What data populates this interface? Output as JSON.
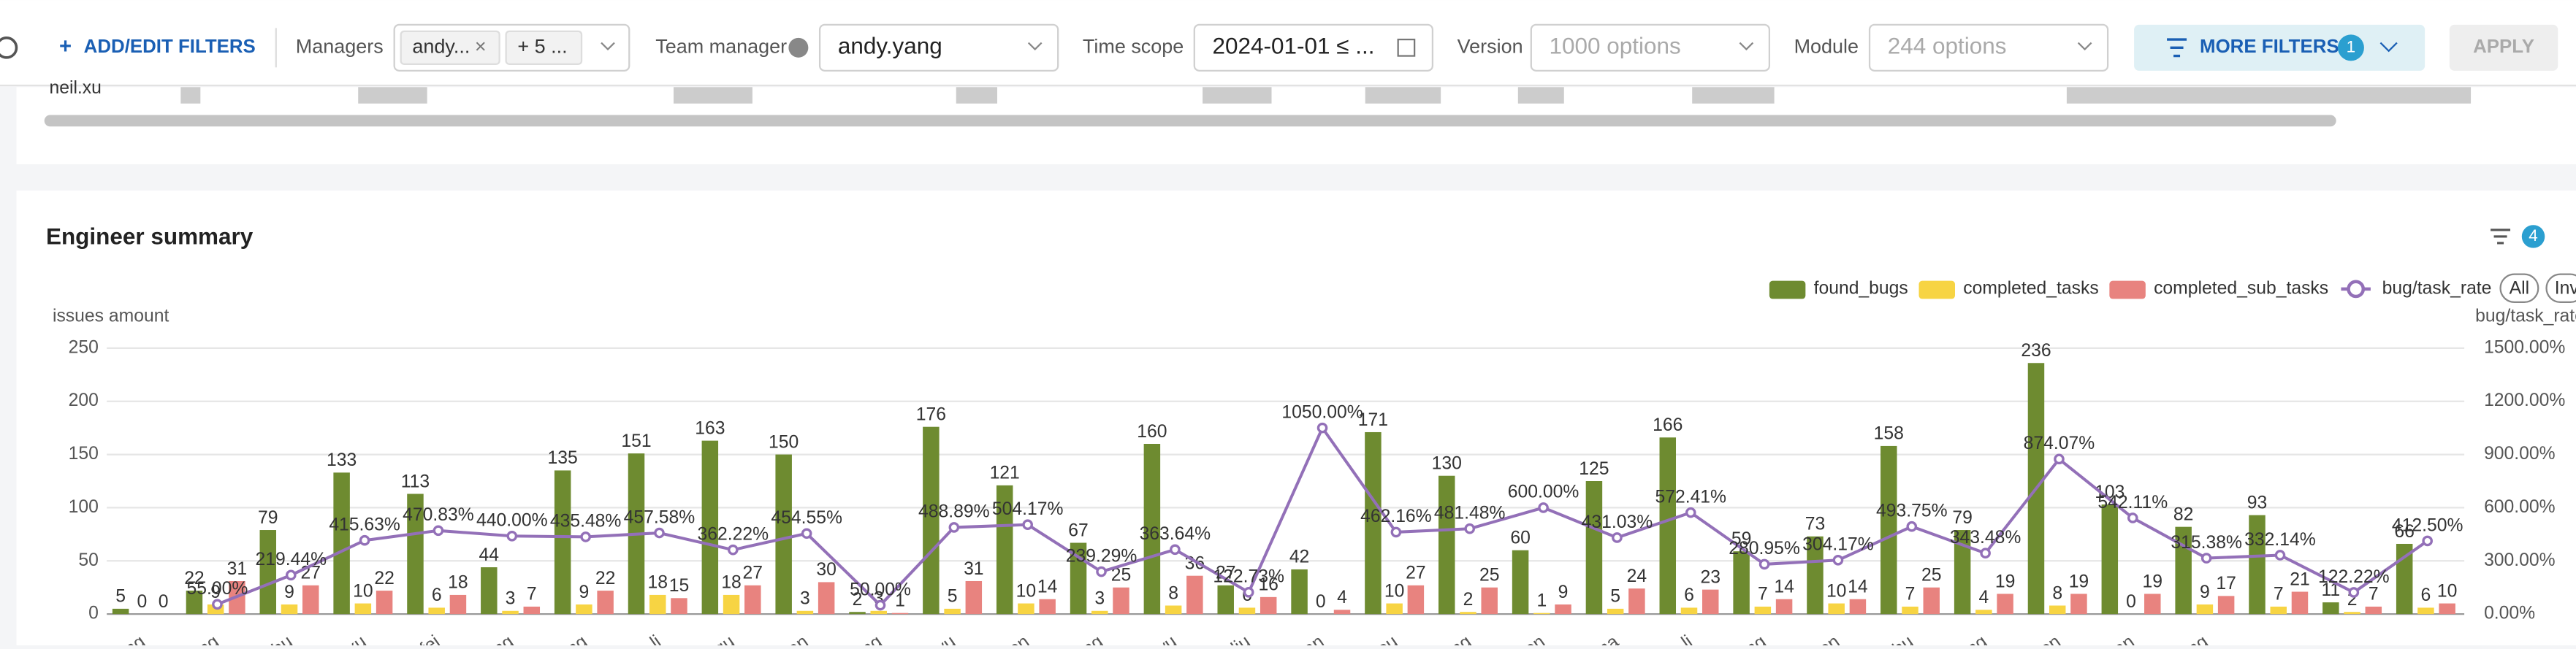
{
  "filters": {
    "add_button": "ADD/EDIT FILTERS",
    "managers_label": "Managers",
    "managers_chip": "andy...",
    "managers_more": "+ 5 ...",
    "team_manager_label": "Team manager",
    "team_manager_value": "andy.yang",
    "time_scope_label": "Time scope",
    "time_scope_value": "2024-01-01 ≤ ...",
    "version_label": "Version",
    "version_placeholder": "1000 options",
    "module_label": "Module",
    "module_placeholder": "244 options",
    "more_filters": "MORE FILTERS",
    "more_filters_count": "1",
    "apply": "APPLY"
  },
  "table": {
    "row_label": "neil.xu"
  },
  "chart_data": {
    "type": "bar",
    "title": "Engineer summary",
    "filter_count": "4",
    "y_label": "issues amount",
    "y2_label": "bug/task_rate",
    "legend_buttons": [
      "All",
      "Inv"
    ],
    "categories": [
      "ang",
      "ang",
      "d.hu",
      "s.xu",
      "s.fei",
      "ang",
      "eng",
      "o.li",
      "g.gu",
      "han",
      "jing",
      "a.yu",
      "hen",
      "ang",
      "wu",
      "liu",
      "pan",
      "hou",
      "ang",
      "hen",
      "ma",
      "in.li",
      "ang",
      "hen",
      "chu",
      "ang",
      "hen",
      "van",
      "ang",
      null,
      null,
      null
    ],
    "series": [
      {
        "name": "found_bugs",
        "type": "bar",
        "color": "#6e8b30",
        "values": [
          5,
          22,
          79,
          133,
          113,
          44,
          135,
          151,
          163,
          150,
          2,
          176,
          121,
          67,
          160,
          27,
          42,
          171,
          130,
          60,
          125,
          166,
          59,
          73,
          158,
          79,
          236,
          103,
          82,
          93,
          11,
          66
        ]
      },
      {
        "name": "completed_tasks",
        "type": "bar",
        "color": "#f7d443",
        "values": [
          0,
          9,
          9,
          10,
          6,
          3,
          9,
          18,
          18,
          3,
          3,
          5,
          10,
          3,
          8,
          6,
          0,
          10,
          2,
          1,
          5,
          6,
          7,
          10,
          7,
          4,
          8,
          0,
          9,
          7,
          2,
          6
        ]
      },
      {
        "name": "completed_sub_tasks",
        "type": "bar",
        "color": "#e8837f",
        "values": [
          0,
          31,
          27,
          22,
          18,
          7,
          22,
          15,
          27,
          30,
          1,
          31,
          14,
          25,
          36,
          16,
          4,
          27,
          25,
          9,
          24,
          23,
          14,
          14,
          25,
          19,
          19,
          19,
          17,
          21,
          7,
          10
        ]
      },
      {
        "name": "bug/task_rate",
        "type": "line",
        "axis": "y2",
        "color": "#9370b8",
        "values": [
          null,
          55,
          219.44,
          415.63,
          470.83,
          440,
          435.48,
          457.58,
          362.22,
          454.55,
          50,
          488.89,
          504.17,
          239.29,
          363.64,
          122.73,
          1050,
          462.16,
          481.48,
          600,
          431.03,
          572.41,
          280.95,
          304.17,
          493.75,
          343.48,
          874.07,
          542.11,
          315.38,
          332.14,
          122.22,
          412.5
        ],
        "value_labels": [
          null,
          "55.00%",
          "219.44%",
          "415.63%",
          "470.83%",
          "440.00%",
          "435.48%",
          "457.58%",
          "362.22%",
          "454.55%",
          "50.00%",
          "488.89%",
          "504.17%",
          "239.29%",
          "363.64%",
          "122.73%",
          "1050.00%",
          "462.16%",
          "481.48%",
          "600.00%",
          "431.03%",
          "572.41%",
          "280.95%",
          "304.17%",
          "493.75%",
          "343.48%",
          "874.07%",
          "542.11%",
          "315.38%",
          "332.14%",
          "122.22%",
          "412.50%"
        ]
      }
    ],
    "ylim": [
      0,
      250
    ],
    "yticks": [
      0,
      50,
      100,
      150,
      200,
      250
    ],
    "y2lim": [
      0,
      1500
    ],
    "y2ticks": [
      {
        "value": 0,
        "label": "0.00%"
      },
      {
        "value": 300,
        "label": "300.00%"
      },
      {
        "value": 600,
        "label": "600.00%"
      },
      {
        "value": 900,
        "label": "900.00%"
      },
      {
        "value": 1200,
        "label": "1200.00%"
      },
      {
        "value": 1500,
        "label": "1500.00%"
      }
    ],
    "grid": true
  }
}
